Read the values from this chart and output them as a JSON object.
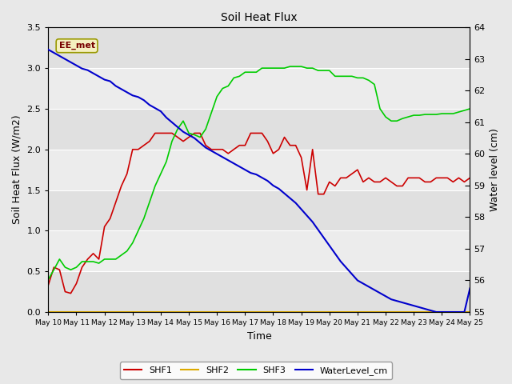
{
  "title": "Soil Heat Flux",
  "xlabel": "Time",
  "ylabel_left": "Soil Heat Flux (W/m2)",
  "ylabel_right": "Water level (cm)",
  "annotation": "EE_met",
  "ylim_left": [
    0.0,
    3.5
  ],
  "ylim_right": [
    55.0,
    64.0
  ],
  "background_color": "#e8e8e8",
  "plot_bg_color": "#d8d8d8",
  "stripe_color": "#c8c8c8",
  "shf1_color": "#cc0000",
  "shf2_color": "#ddaa00",
  "shf3_color": "#00cc00",
  "water_color": "#0000cc",
  "grid_color": "#ffffff",
  "legend_labels": [
    "SHF1",
    "SHF2",
    "SHF3",
    "WaterLevel_cm"
  ],
  "x_tick_labels": [
    "May 10",
    "May 11",
    "May 12",
    "May 13",
    "May 14",
    "May 15",
    "May 16",
    "May 17",
    "May 18",
    "May 19",
    "May 20",
    "May 21",
    "May 22",
    "May 23",
    "May 24",
    "May 25"
  ],
  "shf1": [
    0.33,
    0.55,
    0.52,
    0.25,
    0.23,
    0.35,
    0.55,
    0.65,
    0.72,
    0.65,
    1.05,
    1.15,
    1.35,
    1.55,
    1.7,
    2.0,
    2.0,
    2.05,
    2.1,
    2.2,
    2.2,
    2.2,
    2.2,
    2.15,
    2.1,
    2.15,
    2.2,
    2.2,
    2.05,
    2.0,
    2.0,
    2.0,
    1.95,
    2.0,
    2.05,
    2.05,
    2.2,
    2.2,
    2.2,
    2.1,
    1.95,
    2.0,
    2.15,
    2.05,
    2.05,
    1.9,
    1.5,
    2.0,
    1.45,
    1.45,
    1.6,
    1.55,
    1.65,
    1.65,
    1.7,
    1.75,
    1.6,
    1.65,
    1.6,
    1.6,
    1.65,
    1.6,
    1.55,
    1.55,
    1.65,
    1.65,
    1.65,
    1.6,
    1.6,
    1.65,
    1.65,
    1.65,
    1.6,
    1.65,
    1.6,
    1.65
  ],
  "shf2": [
    0.0,
    0.0,
    0.0,
    0.0,
    0.0,
    0.0,
    0.0,
    0.0,
    0.0,
    0.0,
    0.0,
    0.0,
    0.0,
    0.0,
    0.0,
    0.0,
    0.0,
    0.0,
    0.0,
    0.0,
    0.0,
    0.0,
    0.0,
    0.0,
    0.0,
    0.0,
    0.0,
    0.0,
    0.0,
    0.0,
    0.0,
    0.0,
    0.0,
    0.0,
    0.0,
    0.0,
    0.0,
    0.0,
    0.0,
    0.0,
    0.0,
    0.0,
    0.0,
    0.0,
    0.0,
    0.0,
    0.0,
    0.0,
    0.0,
    0.0,
    0.0,
    0.0,
    0.0,
    0.0,
    0.0,
    0.0,
    0.0,
    0.0,
    0.0,
    0.0,
    0.0,
    0.0,
    0.0,
    0.0,
    0.0,
    0.0,
    0.0,
    0.0,
    0.0,
    0.0,
    0.0,
    0.0,
    0.0,
    0.0,
    0.0,
    0.0
  ],
  "shf3": [
    0.4,
    0.52,
    0.65,
    0.55,
    0.52,
    0.55,
    0.62,
    0.62,
    0.62,
    0.6,
    0.65,
    0.65,
    0.65,
    0.7,
    0.75,
    0.85,
    1.0,
    1.15,
    1.35,
    1.55,
    1.7,
    1.85,
    2.1,
    2.25,
    2.35,
    2.2,
    2.18,
    2.15,
    2.25,
    2.45,
    2.65,
    2.75,
    2.78,
    2.88,
    2.9,
    2.95,
    2.95,
    2.95,
    3.0,
    3.0,
    3.0,
    3.0,
    3.0,
    3.02,
    3.02,
    3.02,
    3.0,
    3.0,
    2.97,
    2.97,
    2.97,
    2.9,
    2.9,
    2.9,
    2.9,
    2.88,
    2.88,
    2.85,
    2.8,
    2.5,
    2.4,
    2.35,
    2.35,
    2.38,
    2.4,
    2.42,
    2.42,
    2.43,
    2.43,
    2.43,
    2.44,
    2.44,
    2.44,
    2.46,
    2.48,
    2.5
  ],
  "water": [
    63.3,
    63.2,
    63.1,
    63.0,
    62.9,
    62.8,
    62.7,
    62.65,
    62.55,
    62.45,
    62.35,
    62.3,
    62.15,
    62.05,
    61.95,
    61.85,
    61.8,
    61.7,
    61.55,
    61.45,
    61.35,
    61.15,
    61.0,
    60.85,
    60.7,
    60.6,
    60.5,
    60.35,
    60.2,
    60.1,
    60.0,
    59.9,
    59.8,
    59.7,
    59.6,
    59.5,
    59.4,
    59.35,
    59.25,
    59.15,
    59.0,
    58.9,
    58.75,
    58.6,
    58.45,
    58.25,
    58.05,
    57.85,
    57.6,
    57.35,
    57.1,
    56.85,
    56.6,
    56.4,
    56.2,
    56.0,
    55.9,
    55.8,
    55.7,
    55.6,
    55.5,
    55.4,
    55.35,
    55.3,
    55.25,
    55.2,
    55.15,
    55.1,
    55.05,
    55.0,
    55.0,
    55.0,
    55.0,
    55.0,
    55.0,
    55.75
  ]
}
